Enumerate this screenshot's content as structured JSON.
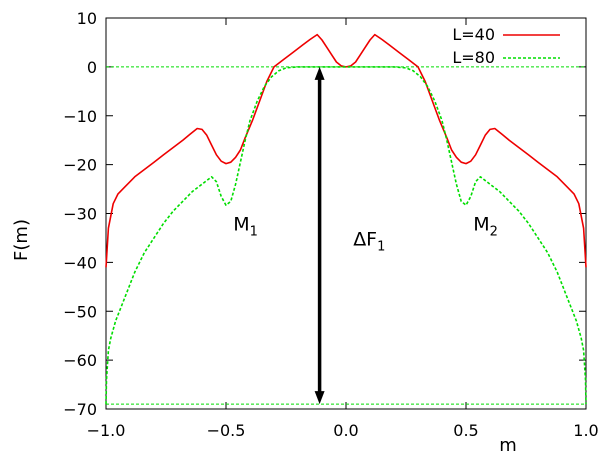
{
  "chart_data": {
    "type": "line",
    "xlabel": "m",
    "ylabel": "F(m)",
    "xlim": [
      -1.0,
      1.0
    ],
    "ylim": [
      -70,
      10
    ],
    "x_ticks": [
      -1.0,
      -0.5,
      0.0,
      0.5,
      1.0
    ],
    "x_tick_labels": [
      "−1.0",
      "−0.5",
      "0.0",
      "0.5",
      "1.0"
    ],
    "y_ticks": [
      10,
      0,
      -10,
      -20,
      -30,
      -40,
      -50,
      -60,
      -70
    ],
    "y_tick_labels": [
      "10",
      "0",
      "−10",
      "−20",
      "−30",
      "−40",
      "−50",
      "−60",
      "−70"
    ],
    "legend_position": "top-right",
    "reference_lines": [
      {
        "y": 0,
        "color": "#00dd00"
      },
      {
        "y": -69,
        "color": "#00dd00"
      }
    ],
    "series": [
      {
        "name": "L=40",
        "color": "#ee0000",
        "dash": "solid",
        "points": [
          [
            -1.0,
            -41
          ],
          [
            -0.99,
            -33
          ],
          [
            -0.97,
            -28
          ],
          [
            -0.95,
            -26
          ],
          [
            -0.92,
            -24.5
          ],
          [
            -0.88,
            -22.5
          ],
          [
            -0.84,
            -21
          ],
          [
            -0.8,
            -19.5
          ],
          [
            -0.76,
            -18
          ],
          [
            -0.72,
            -16.5
          ],
          [
            -0.68,
            -15
          ],
          [
            -0.65,
            -13.8
          ],
          [
            -0.62,
            -12.6
          ],
          [
            -0.6,
            -12.8
          ],
          [
            -0.58,
            -14
          ],
          [
            -0.56,
            -16
          ],
          [
            -0.54,
            -18
          ],
          [
            -0.52,
            -19.3
          ],
          [
            -0.5,
            -19.8
          ],
          [
            -0.48,
            -19.5
          ],
          [
            -0.46,
            -18.5
          ],
          [
            -0.44,
            -17
          ],
          [
            -0.42,
            -14.5
          ],
          [
            -0.39,
            -11
          ],
          [
            -0.36,
            -7
          ],
          [
            -0.33,
            -3
          ],
          [
            -0.3,
            0
          ],
          [
            -0.26,
            1.5
          ],
          [
            -0.22,
            3
          ],
          [
            -0.18,
            4.5
          ],
          [
            -0.15,
            5.6
          ],
          [
            -0.12,
            6.6
          ],
          [
            -0.1,
            5.5
          ],
          [
            -0.08,
            4
          ],
          [
            -0.06,
            2.5
          ],
          [
            -0.04,
            1
          ],
          [
            -0.02,
            0.2
          ],
          [
            0.0,
            0
          ],
          [
            0.02,
            0.2
          ],
          [
            0.04,
            1
          ],
          [
            0.06,
            2.5
          ],
          [
            0.08,
            4
          ],
          [
            0.1,
            5.5
          ],
          [
            0.12,
            6.6
          ],
          [
            0.15,
            5.6
          ],
          [
            0.18,
            4.5
          ],
          [
            0.22,
            3
          ],
          [
            0.26,
            1.5
          ],
          [
            0.3,
            0
          ],
          [
            0.33,
            -3
          ],
          [
            0.36,
            -7
          ],
          [
            0.39,
            -11
          ],
          [
            0.42,
            -14.5
          ],
          [
            0.44,
            -17
          ],
          [
            0.46,
            -18.5
          ],
          [
            0.48,
            -19.5
          ],
          [
            0.5,
            -19.8
          ],
          [
            0.52,
            -19.3
          ],
          [
            0.54,
            -18
          ],
          [
            0.56,
            -16
          ],
          [
            0.58,
            -14
          ],
          [
            0.6,
            -12.8
          ],
          [
            0.62,
            -12.6
          ],
          [
            0.65,
            -13.8
          ],
          [
            0.68,
            -15
          ],
          [
            0.72,
            -16.5
          ],
          [
            0.76,
            -18
          ],
          [
            0.8,
            -19.5
          ],
          [
            0.84,
            -21
          ],
          [
            0.88,
            -22.5
          ],
          [
            0.92,
            -24.5
          ],
          [
            0.95,
            -26
          ],
          [
            0.97,
            -28
          ],
          [
            0.99,
            -33
          ],
          [
            1.0,
            -41
          ]
        ]
      },
      {
        "name": "L=80",
        "color": "#00dd00",
        "dash": "dashed",
        "points": [
          [
            -1.0,
            -69
          ],
          [
            -0.998,
            -64
          ],
          [
            -0.99,
            -58
          ],
          [
            -0.98,
            -55.5
          ],
          [
            -0.96,
            -52
          ],
          [
            -0.92,
            -47
          ],
          [
            -0.88,
            -42
          ],
          [
            -0.84,
            -38
          ],
          [
            -0.8,
            -35
          ],
          [
            -0.76,
            -32
          ],
          [
            -0.72,
            -29.5
          ],
          [
            -0.68,
            -27.5
          ],
          [
            -0.64,
            -25.5
          ],
          [
            -0.6,
            -24
          ],
          [
            -0.56,
            -22.5
          ],
          [
            -0.54,
            -23.5
          ],
          [
            -0.52,
            -26.5
          ],
          [
            -0.5,
            -28.3
          ],
          [
            -0.48,
            -27.5
          ],
          [
            -0.46,
            -24
          ],
          [
            -0.44,
            -19.5
          ],
          [
            -0.42,
            -15
          ],
          [
            -0.4,
            -11
          ],
          [
            -0.37,
            -7
          ],
          [
            -0.34,
            -4
          ],
          [
            -0.31,
            -2
          ],
          [
            -0.28,
            -0.8
          ],
          [
            -0.25,
            -0.2
          ],
          [
            -0.2,
            0
          ],
          [
            0.0,
            0
          ],
          [
            0.2,
            0
          ],
          [
            0.25,
            -0.2
          ],
          [
            0.28,
            -0.8
          ],
          [
            0.31,
            -2
          ],
          [
            0.34,
            -4
          ],
          [
            0.37,
            -7
          ],
          [
            0.4,
            -11
          ],
          [
            0.42,
            -15
          ],
          [
            0.44,
            -19.5
          ],
          [
            0.46,
            -24
          ],
          [
            0.48,
            -27.5
          ],
          [
            0.5,
            -28.3
          ],
          [
            0.52,
            -26.5
          ],
          [
            0.54,
            -23.5
          ],
          [
            0.56,
            -22.5
          ],
          [
            0.6,
            -24
          ],
          [
            0.64,
            -25.5
          ],
          [
            0.68,
            -27.5
          ],
          [
            0.72,
            -29.5
          ],
          [
            0.76,
            -32
          ],
          [
            0.8,
            -35
          ],
          [
            0.84,
            -38
          ],
          [
            0.88,
            -42
          ],
          [
            0.92,
            -47
          ],
          [
            0.96,
            -52
          ],
          [
            0.98,
            -55.5
          ],
          [
            0.99,
            -58
          ],
          [
            0.998,
            -64
          ],
          [
            1.0,
            -69
          ]
        ]
      }
    ],
    "annotations": [
      {
        "id": "m1",
        "main": "M",
        "sub": "1",
        "x": -0.47,
        "y": -33.5
      },
      {
        "id": "m2",
        "main": "M",
        "sub": "2",
        "x": 0.53,
        "y": -33.5
      },
      {
        "id": "df1",
        "main": "ΔF",
        "sub": "1",
        "x": 0.03,
        "y": -36.5
      }
    ],
    "arrow": {
      "x": -0.11,
      "y_top": 0,
      "y_bottom": -69,
      "color": "#000000"
    }
  }
}
